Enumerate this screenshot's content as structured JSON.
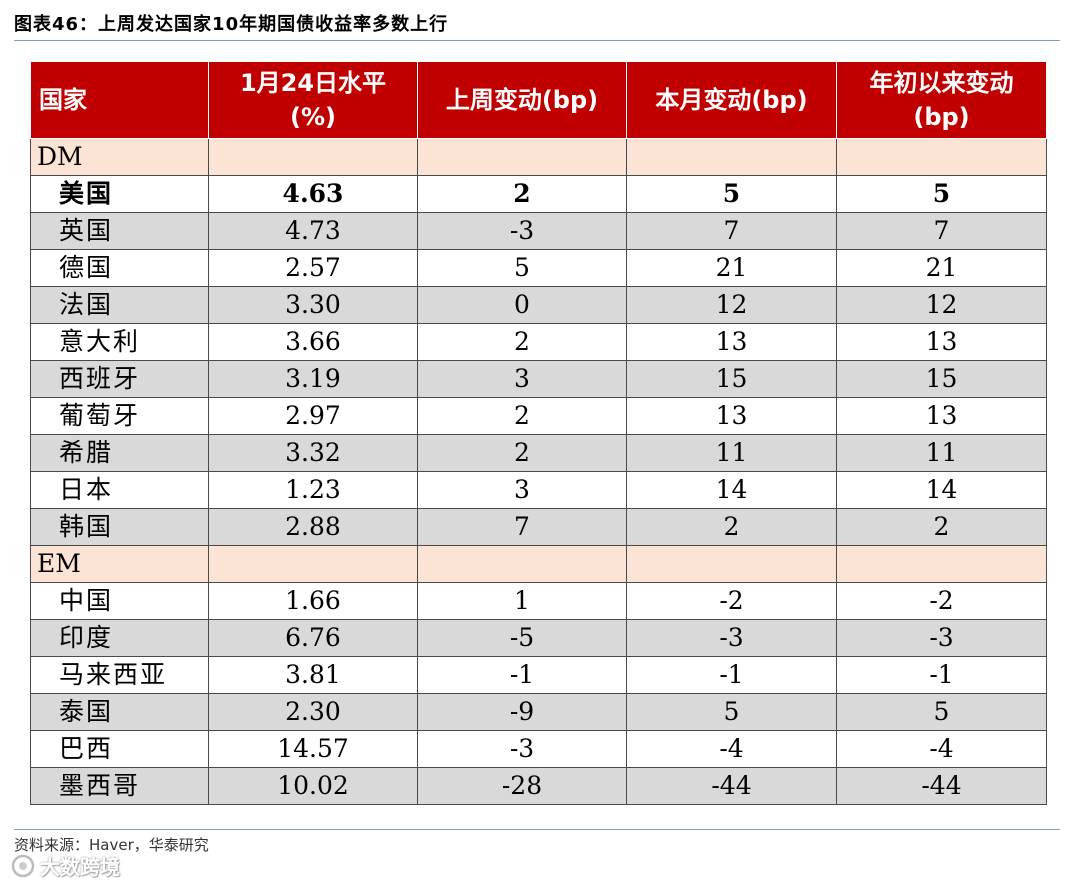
{
  "title": "图表46：上周发达国家10年期国债收益率多数上行",
  "headers": [
    "国家",
    "1月24日水平 (%)",
    "上周变动(bp)",
    "本月变动(bp)",
    "年初以来变动 (bp)"
  ],
  "groups": [
    {
      "label": "DM",
      "rows": [
        {
          "country": "美国",
          "level": "4.63",
          "week": "2",
          "month": "5",
          "ytd": "5",
          "bold": true
        },
        {
          "country": "英国",
          "level": "4.73",
          "week": "-3",
          "month": "7",
          "ytd": "7"
        },
        {
          "country": "德国",
          "level": "2.57",
          "week": "5",
          "month": "21",
          "ytd": "21"
        },
        {
          "country": "法国",
          "level": "3.30",
          "week": "0",
          "month": "12",
          "ytd": "12"
        },
        {
          "country": "意大利",
          "level": "3.66",
          "week": "2",
          "month": "13",
          "ytd": "13"
        },
        {
          "country": "西班牙",
          "level": "3.19",
          "week": "3",
          "month": "15",
          "ytd": "15"
        },
        {
          "country": "葡萄牙",
          "level": "2.97",
          "week": "2",
          "month": "13",
          "ytd": "13"
        },
        {
          "country": "希腊",
          "level": "3.32",
          "week": "2",
          "month": "11",
          "ytd": "11"
        },
        {
          "country": "日本",
          "level": "1.23",
          "week": "3",
          "month": "14",
          "ytd": "14"
        },
        {
          "country": "韩国",
          "level": "2.88",
          "week": "7",
          "month": "2",
          "ytd": "2"
        }
      ]
    },
    {
      "label": "EM",
      "rows": [
        {
          "country": "中国",
          "level": "1.66",
          "week": "1",
          "month": "-2",
          "ytd": "-2"
        },
        {
          "country": "印度",
          "level": "6.76",
          "week": "-5",
          "month": "-3",
          "ytd": "-3"
        },
        {
          "country": "马来西亚",
          "level": "3.81",
          "week": "-1",
          "month": "-1",
          "ytd": "-1"
        },
        {
          "country": "泰国",
          "level": "2.30",
          "week": "-9",
          "month": "5",
          "ytd": "5"
        },
        {
          "country": "巴西",
          "level": "14.57",
          "week": "-3",
          "month": "-4",
          "ytd": "-4"
        },
        {
          "country": "墨西哥",
          "level": "10.02",
          "week": "-28",
          "month": "-44",
          "ytd": "-44"
        }
      ]
    }
  ],
  "source": "资料来源：Haver，华泰研究",
  "watermark": "大数跨境",
  "colors": {
    "header_bg": "#c00000",
    "group_bg": "#fbe4d5",
    "shade_bg": "#d9d9d9"
  }
}
